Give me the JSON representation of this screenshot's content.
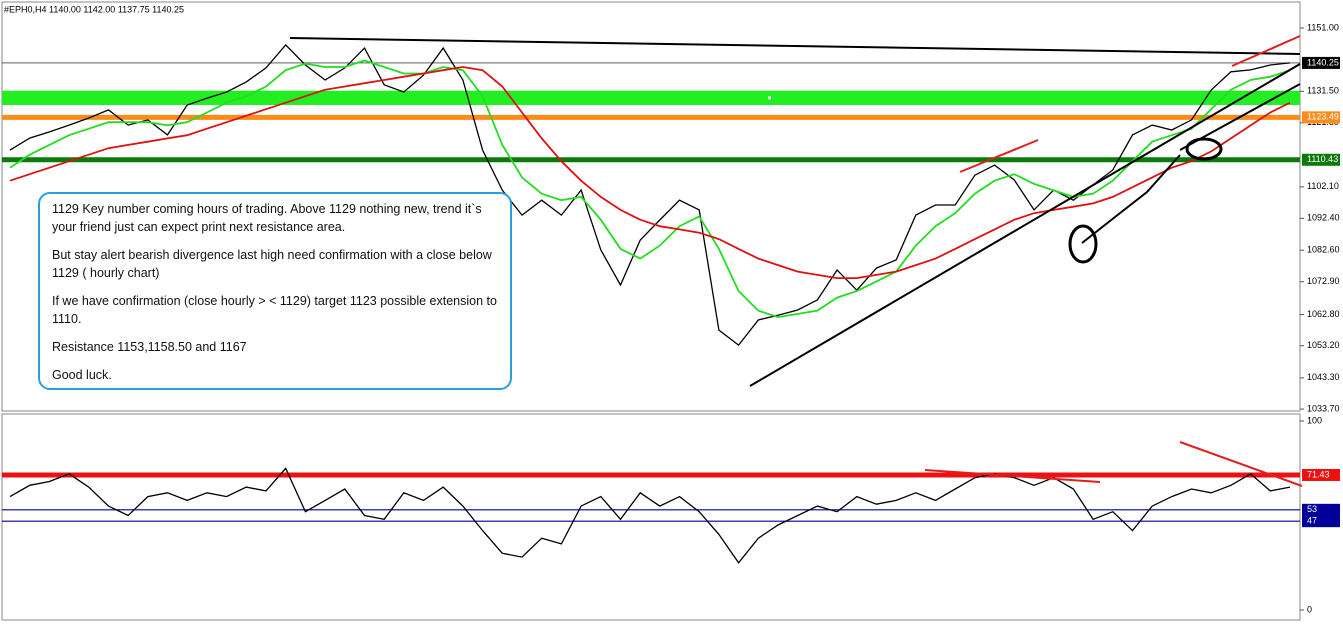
{
  "chart_data": [
    {
      "type": "line",
      "header": "#EPH0,H4  1140.00 1142.00 1137.75 1140.25",
      "ylim": [
        1033.1,
        1159
      ],
      "yticks": [
        {
          "value": 1151,
          "label": "1151.00"
        },
        {
          "value": 1131.5,
          "label": "1131.50"
        },
        {
          "value": 1121.8,
          "label": "1121.80"
        },
        {
          "value": 1102.1,
          "label": "1102.10"
        },
        {
          "value": 1092.4,
          "label": "1092.40"
        },
        {
          "value": 1082.6,
          "label": "1082.60"
        },
        {
          "value": 1072.9,
          "label": "1072.90"
        },
        {
          "value": 1062.8,
          "label": "1062.80"
        },
        {
          "value": 1053.2,
          "label": "1053.20"
        },
        {
          "value": 1043.3,
          "label": "1043.30"
        },
        {
          "value": 1033.7,
          "label": "1033.70"
        }
      ],
      "zone": {
        "from": 1127.3,
        "to": 1131.7,
        "color": "#22ee22"
      },
      "levels": [
        {
          "value": 1140.25,
          "color": "#000000",
          "width": 0.6
        },
        {
          "value": 1123.49,
          "color": "#ff8c1a",
          "width": 5
        },
        {
          "value": 1110.43,
          "color": "#0a7a0a",
          "width": 5
        }
      ],
      "series": [
        {
          "color": "#000000",
          "values": [
            1113.4,
            1117.1,
            1119.0,
            1121.1,
            1123.3,
            1125.8,
            1121.1,
            1122.7,
            1118.1,
            1127.3,
            1129.4,
            1131.3,
            1134.4,
            1138.7,
            1145.8,
            1139.6,
            1135.0,
            1138.7,
            1144.8,
            1133.5,
            1131.3,
            1136.5,
            1144.8,
            1135.0,
            1113.4,
            1101.1,
            1093.4,
            1098.0,
            1093.4,
            1101.1,
            1082.7,
            1071.9,
            1085.7,
            1091.9,
            1098.0,
            1095.0,
            1058.0,
            1053.4,
            1061.1,
            1062.6,
            1064.2,
            1067.3,
            1076.5,
            1070.3,
            1077.1,
            1079.6,
            1093.4,
            1096.5,
            1096.5,
            1105.7,
            1108.8,
            1104.2,
            1095.0,
            1101.1,
            1098.0,
            1102.7,
            1107.3,
            1118.1,
            1121.1,
            1119.6,
            1122.7,
            1131.9,
            1137.5,
            1138.1,
            1139.6,
            1140.25
          ]
        },
        {
          "color": "#22dd22",
          "values": [
            1108,
            1112,
            1115,
            1118,
            1120,
            1122,
            1122,
            1122,
            1121,
            1122,
            1125,
            1128,
            1130,
            1133,
            1138,
            1140,
            1139,
            1139,
            1141,
            1139,
            1137,
            1137,
            1139,
            1138,
            1130,
            1115,
            1105,
            1100,
            1098,
            1099,
            1092,
            1083,
            1080,
            1084,
            1090,
            1093,
            1083,
            1070,
            1064,
            1062,
            1063,
            1064,
            1068,
            1070,
            1073,
            1076,
            1084,
            1090,
            1094,
            1100,
            1104,
            1106,
            1103,
            1101,
            1099,
            1100,
            1104,
            1110,
            1116,
            1118,
            1120,
            1126,
            1132,
            1135,
            1136,
            1138
          ]
        },
        {
          "color": "#dd1111",
          "values": [
            1104,
            1106,
            1108,
            1110,
            1112,
            1114,
            1115,
            1116,
            1117,
            1118,
            1120,
            1122,
            1124,
            1126,
            1128,
            1130,
            1132,
            1133,
            1134,
            1135,
            1136,
            1137,
            1138,
            1139,
            1138,
            1133,
            1125,
            1117,
            1110,
            1104,
            1099,
            1095,
            1092,
            1090,
            1089,
            1088,
            1086,
            1083,
            1080,
            1078,
            1076,
            1075,
            1074,
            1074,
            1075,
            1076,
            1078,
            1080,
            1083,
            1086,
            1089,
            1092,
            1094,
            1095,
            1096,
            1097,
            1099,
            1102,
            1105,
            1108,
            1110,
            1113,
            1117,
            1121,
            1125,
            1128
          ]
        }
      ],
      "annotations": [
        "1129 Key number coming hours of trading. Above 1129 nothing new, trend it`s your friend just can expect print next resistance area.",
        "But stay alert bearish divergence last high need confirmation with a close below 1129 ( hourly chart)",
        "If we have confirmation (close hourly > < 1129)  target 1123 possible extension to 1110.",
        "Resistance 1153,1158.50 and 1167",
        "Good luck."
      ]
    },
    {
      "type": "line",
      "ylim": [
        0,
        100
      ],
      "yticks": [
        0,
        100
      ],
      "levels": [
        {
          "value": 71.43,
          "color": "#ee1111",
          "width": 5
        },
        {
          "value": 53,
          "color": "#000099",
          "width": 1.2
        },
        {
          "value": 47,
          "color": "#000099",
          "width": 1.2
        }
      ],
      "series": [
        {
          "color": "#000000",
          "values": [
            60,
            66,
            68,
            72,
            65,
            55,
            50,
            60,
            62,
            58,
            62,
            60,
            65,
            63,
            75,
            52,
            58,
            64,
            50,
            48,
            62,
            58,
            65,
            55,
            42,
            30,
            28,
            38,
            35,
            55,
            60,
            48,
            62,
            55,
            60,
            52,
            40,
            25,
            38,
            45,
            50,
            55,
            52,
            60,
            56,
            58,
            62,
            58,
            64,
            70,
            72,
            70,
            66,
            70,
            64,
            48,
            52,
            42,
            55,
            60,
            64,
            62,
            66,
            72,
            63,
            65
          ]
        }
      ]
    }
  ]
}
